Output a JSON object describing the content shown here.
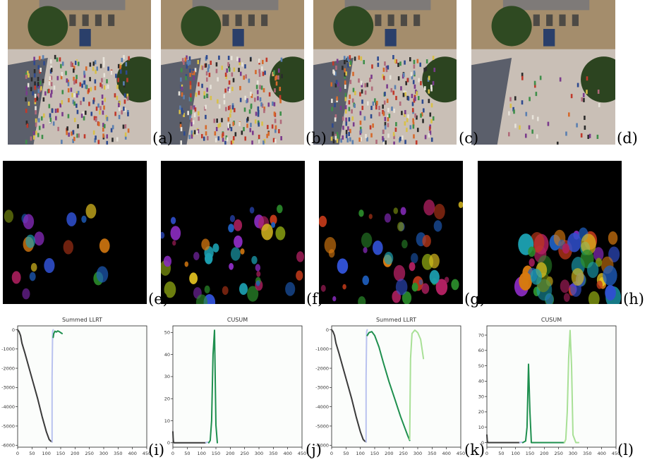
{
  "labels": [
    "(a)",
    "(b)",
    "(c)",
    "(d)",
    "(e)",
    "(f)",
    "(g)",
    "(h)",
    "(i)",
    "(j)",
    "(k)",
    "(l)"
  ],
  "photos": [
    {
      "crowd": "dense"
    },
    {
      "crowd": "dense"
    },
    {
      "crowd": "dense"
    },
    {
      "crowd": "sparse"
    }
  ],
  "flows": [
    {
      "density": "low"
    },
    {
      "density": "medium"
    },
    {
      "density": "medium"
    },
    {
      "density": "high-bottom"
    }
  ],
  "colors": {
    "dark": "#3a3a3a",
    "lightblue": "#b9c2ef",
    "green": "#1e8f4e",
    "lightgreen": "#a8e096",
    "axis": "#222222"
  },
  "chart_data": [
    {
      "type": "line",
      "title": "Summed LLRT",
      "xlim": [
        0,
        450
      ],
      "ylim": [
        -6100,
        200
      ],
      "xticks": [
        0,
        50,
        100,
        150,
        200,
        250,
        300,
        350,
        400,
        450
      ],
      "yticks": [
        0,
        -1000,
        -2000,
        -3000,
        -4000,
        -5000,
        -6000
      ],
      "series": [
        {
          "color": "dark",
          "x": [
            0,
            5,
            10,
            15,
            25,
            40,
            55,
            70,
            85,
            100,
            110,
            115,
            120
          ],
          "y": [
            0,
            -100,
            -300,
            -700,
            -1200,
            -2000,
            -2800,
            -3600,
            -4500,
            -5300,
            -5700,
            -5780,
            -5820
          ]
        },
        {
          "color": "lightblue",
          "x": [
            120,
            120,
            122,
            124
          ],
          "y": [
            -5820,
            -2500,
            -100,
            0
          ]
        },
        {
          "color": "green",
          "x": [
            124,
            126,
            130,
            135,
            140,
            145,
            150,
            155
          ],
          "y": [
            -400,
            -200,
            -80,
            -120,
            -60,
            -100,
            -150,
            -200
          ]
        }
      ]
    },
    {
      "type": "line",
      "title": "CUSUM",
      "xlim": [
        0,
        450
      ],
      "ylim": [
        -2,
        53
      ],
      "xticks": [
        0,
        50,
        100,
        150,
        200,
        250,
        300,
        350,
        400,
        450
      ],
      "yticks": [
        0,
        10,
        20,
        30,
        40,
        50
      ],
      "series": [
        {
          "color": "dark",
          "x": [
            0,
            1,
            2,
            4,
            10,
            50,
            100,
            115
          ],
          "y": [
            5,
            2,
            0.5,
            0,
            0,
            0,
            0,
            0
          ]
        },
        {
          "color": "lightblue",
          "x": [
            115,
            120,
            125
          ],
          "y": [
            0,
            0.3,
            0
          ]
        },
        {
          "color": "green",
          "x": [
            125,
            130,
            135,
            140,
            145,
            150,
            155
          ],
          "y": [
            0,
            1,
            10,
            40,
            51,
            8,
            0
          ]
        }
      ]
    },
    {
      "type": "line",
      "title": "Summed LLRT",
      "xlim": [
        0,
        450
      ],
      "ylim": [
        -6100,
        200
      ],
      "xticks": [
        0,
        50,
        100,
        150,
        200,
        250,
        300,
        350,
        400,
        450
      ],
      "yticks": [
        0,
        -1000,
        -2000,
        -3000,
        -4000,
        -5000,
        -6000
      ],
      "series": [
        {
          "color": "dark",
          "x": [
            0,
            5,
            10,
            15,
            25,
            40,
            55,
            70,
            85,
            100,
            110,
            115,
            120
          ],
          "y": [
            0,
            -100,
            -300,
            -700,
            -1200,
            -2000,
            -2800,
            -3600,
            -4500,
            -5300,
            -5700,
            -5780,
            -5820
          ]
        },
        {
          "color": "lightblue",
          "x": [
            120,
            120,
            122,
            124
          ],
          "y": [
            -5820,
            -2500,
            -100,
            0
          ]
        },
        {
          "color": "green",
          "x": [
            124,
            130,
            140,
            150,
            165,
            180,
            200,
            220,
            240,
            255,
            265,
            272
          ],
          "y": [
            -300,
            -150,
            -100,
            -300,
            -900,
            -1700,
            -2700,
            -3600,
            -4500,
            -5100,
            -5500,
            -5750
          ]
        },
        {
          "color": "lightgreen",
          "x": [
            272,
            275,
            280,
            290,
            300,
            310,
            320
          ],
          "y": [
            -5700,
            -1500,
            -200,
            -20,
            -150,
            -500,
            -1500
          ]
        }
      ]
    },
    {
      "type": "line",
      "title": "CUSUM",
      "xlim": [
        0,
        450
      ],
      "ylim": [
        -3,
        76
      ],
      "xticks": [
        0,
        50,
        100,
        150,
        200,
        250,
        300,
        350,
        400,
        450
      ],
      "yticks": [
        0,
        10,
        20,
        30,
        40,
        50,
        60,
        70
      ],
      "series": [
        {
          "color": "dark",
          "x": [
            0,
            1,
            2,
            4,
            10,
            50,
            100,
            115
          ],
          "y": [
            5,
            2,
            0.5,
            0,
            0,
            0,
            0,
            0
          ]
        },
        {
          "color": "lightblue",
          "x": [
            115,
            120,
            125
          ],
          "y": [
            0,
            0.3,
            0
          ]
        },
        {
          "color": "green",
          "x": [
            125,
            135,
            140,
            145,
            150,
            155,
            160,
            270
          ],
          "y": [
            0,
            1,
            10,
            51,
            20,
            0,
            0,
            0
          ]
        },
        {
          "color": "lightgreen",
          "x": [
            270,
            275,
            280,
            285,
            290,
            295,
            300,
            310,
            320
          ],
          "y": [
            0,
            2,
            20,
            55,
            73,
            50,
            5,
            0,
            0
          ]
        }
      ]
    }
  ]
}
